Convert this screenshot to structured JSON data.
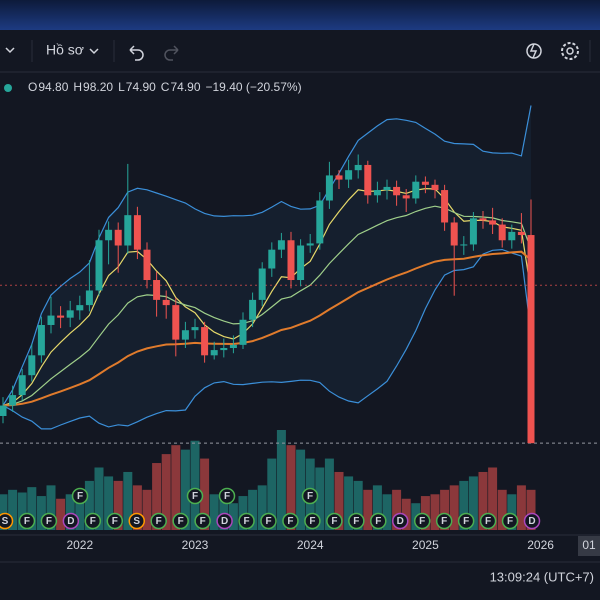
{
  "toolbar": {
    "profile": "Hồ sơ"
  },
  "legend": [
    {
      "key": "O",
      "value": "94.80"
    },
    {
      "key": "H",
      "value": "98.20"
    },
    {
      "key": "L",
      "value": "74.90"
    },
    {
      "key": "C",
      "value": "74.90"
    }
  ],
  "change": "−19.40 (−20.57%)",
  "status": {
    "time": "13:09:24 (UTC+7)",
    "corner": "01"
  },
  "chart_data": {
    "type": "candlestick",
    "ylim": [
      66.6,
      110.1
    ],
    "up_color": "#26a69a",
    "down_color": "#ef5350",
    "alert_line": 90.0,
    "year_labels": [
      "2022",
      "2023",
      "2024",
      "2025",
      "2026"
    ],
    "open": [
      77.5,
      78.5,
      79.5,
      81.4,
      83.3,
      86.2,
      87.1,
      86.9,
      87.6,
      88.1,
      89.5,
      94.3,
      95.3,
      93.8,
      96.7,
      93.4,
      90.5,
      88.6,
      88.1,
      84.8,
      85.7,
      86.0,
      83.3,
      83.8,
      84.0,
      84.3,
      86.7,
      88.6,
      91.6,
      93.4,
      94.3,
      90.5,
      93.8,
      94.0,
      98.1,
      100.5,
      100.1,
      101.0,
      101.5,
      98.6,
      99.1,
      99.4,
      98.6,
      98.3,
      99.9,
      99.6,
      99.1,
      96.0,
      93.8,
      93.9,
      96.4,
      96.2,
      95.8,
      94.3,
      95.1,
      94.8
    ],
    "high": [
      79.3,
      80.4,
      82.0,
      84.4,
      87.0,
      88.9,
      88.0,
      88.5,
      89.0,
      92.4,
      95.3,
      96.1,
      96.0,
      101.6,
      97.5,
      94.1,
      91.3,
      89.5,
      88.8,
      86.5,
      86.8,
      86.5,
      84.6,
      84.9,
      85.2,
      87.4,
      89.3,
      92.2,
      94.1,
      95.0,
      95.1,
      94.4,
      94.9,
      98.9,
      101.8,
      101.0,
      102.0,
      102.5,
      101.9,
      99.9,
      100.1,
      100.0,
      99.2,
      100.5,
      100.4,
      100.1,
      99.6,
      96.5,
      94.7,
      97.0,
      97.1,
      97.4,
      96.4,
      95.8,
      96.9,
      98.2
    ],
    "low": [
      76.8,
      77.9,
      79.0,
      80.8,
      82.6,
      85.4,
      85.9,
      86.0,
      86.7,
      87.5,
      89.0,
      92.0,
      91.2,
      93.0,
      92.5,
      89.7,
      87.0,
      86.8,
      83.2,
      84.0,
      84.9,
      82.6,
      82.9,
      83.1,
      83.5,
      83.9,
      86.0,
      88.0,
      90.8,
      92.6,
      89.7,
      89.9,
      93.1,
      93.4,
      97.3,
      99.2,
      99.3,
      100.2,
      97.8,
      97.9,
      98.2,
      97.6,
      97.0,
      97.8,
      98.8,
      98.3,
      95.2,
      89.0,
      92.9,
      93.3,
      95.4,
      94.9,
      93.6,
      93.5,
      94.0,
      74.9
    ],
    "close": [
      78.5,
      79.5,
      81.4,
      83.3,
      86.2,
      87.1,
      86.9,
      87.6,
      88.1,
      89.5,
      94.3,
      95.3,
      93.8,
      96.7,
      93.4,
      90.5,
      88.6,
      88.1,
      84.8,
      85.7,
      86.0,
      83.3,
      83.8,
      84.0,
      84.3,
      86.7,
      88.6,
      91.6,
      93.4,
      94.3,
      90.5,
      93.8,
      94.0,
      98.1,
      100.5,
      100.1,
      101.0,
      101.5,
      98.6,
      99.1,
      99.4,
      98.6,
      98.3,
      99.9,
      99.6,
      99.1,
      96.0,
      93.8,
      93.9,
      96.4,
      96.2,
      95.8,
      94.3,
      95.1,
      94.8,
      74.9
    ],
    "volume": [
      40,
      45,
      42,
      48,
      38,
      50,
      35,
      40,
      42,
      55,
      70,
      60,
      55,
      65,
      50,
      45,
      75,
      85,
      95,
      90,
      100,
      80,
      40,
      35,
      30,
      38,
      45,
      50,
      80,
      112,
      95,
      90,
      80,
      70,
      80,
      65,
      60,
      55,
      45,
      50,
      40,
      45,
      35,
      30,
      38,
      40,
      45,
      50,
      55,
      60,
      65,
      70,
      45,
      40,
      50,
      45
    ],
    "indicators": [
      {
        "color": "#e6d96a"
      },
      {
        "color": "#9fcf8a"
      },
      {
        "color": "#e07b2c"
      }
    ],
    "band_color": "#3b8fd9",
    "event_colors": {
      "F": "#4caf50",
      "D": "#ab47bc",
      "S": "#ff9800"
    },
    "events": [
      "S",
      "F",
      "F",
      "D",
      "F",
      "F",
      "S",
      "F",
      "F",
      "F",
      "D",
      "F",
      "F",
      "F",
      "F",
      "F",
      "F",
      "F",
      "D",
      "F",
      "F",
      "F",
      "F",
      "F",
      "D"
    ],
    "events_upper": [
      "F",
      "F",
      "F",
      "F"
    ]
  }
}
